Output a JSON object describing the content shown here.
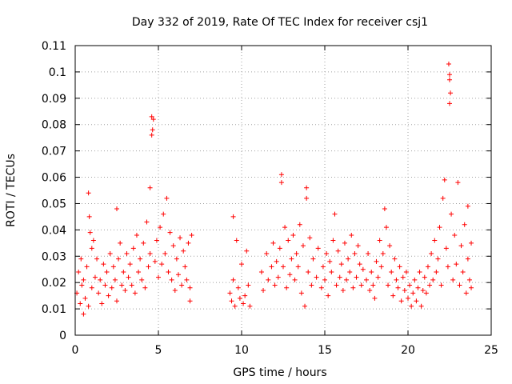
{
  "chart_data": {
    "type": "scatter",
    "title": "Day 332 of 2019, Rate Of TEC Index for receiver csj1",
    "xlabel": "GPS time / hours",
    "ylabel": "ROTI / TECUs",
    "xlim": [
      0,
      25
    ],
    "ylim": [
      0,
      0.11
    ],
    "x_ticks": [
      "0",
      "5",
      "10",
      "15",
      "20",
      "25"
    ],
    "y_ticks": [
      "0",
      "0.01",
      "0.02",
      "0.03",
      "0.04",
      "0.05",
      "0.06",
      "0.07",
      "0.08",
      "0.09",
      "0.1",
      "0.11"
    ],
    "grid": true,
    "marker": "+",
    "color": "#ff0000",
    "series": [
      {
        "points": [
          [
            0.1,
            0.016
          ],
          [
            0.2,
            0.024
          ],
          [
            0.3,
            0.012
          ],
          [
            0.35,
            0.029
          ],
          [
            0.4,
            0.019
          ],
          [
            0.5,
            0.008
          ],
          [
            0.5,
            0.021
          ],
          [
            0.6,
            0.014
          ],
          [
            0.7,
            0.026
          ],
          [
            0.8,
            0.011
          ],
          [
            0.8,
            0.054
          ],
          [
            0.85,
            0.045
          ],
          [
            0.9,
            0.039
          ],
          [
            1.0,
            0.033
          ],
          [
            1.0,
            0.018
          ],
          [
            1.1,
            0.036
          ],
          [
            1.2,
            0.022
          ],
          [
            1.3,
            0.029
          ],
          [
            1.4,
            0.016
          ],
          [
            1.5,
            0.021
          ],
          [
            1.6,
            0.012
          ],
          [
            1.7,
            0.027
          ],
          [
            1.8,
            0.019
          ],
          [
            1.9,
            0.024
          ],
          [
            2.0,
            0.015
          ],
          [
            2.1,
            0.031
          ],
          [
            2.2,
            0.018
          ],
          [
            2.3,
            0.026
          ],
          [
            2.4,
            0.021
          ],
          [
            2.5,
            0.048
          ],
          [
            2.5,
            0.013
          ],
          [
            2.6,
            0.029
          ],
          [
            2.7,
            0.035
          ],
          [
            2.8,
            0.019
          ],
          [
            2.9,
            0.024
          ],
          [
            3.0,
            0.017
          ],
          [
            3.1,
            0.031
          ],
          [
            3.2,
            0.022
          ],
          [
            3.3,
            0.027
          ],
          [
            3.4,
            0.019
          ],
          [
            3.5,
            0.033
          ],
          [
            3.6,
            0.016
          ],
          [
            3.7,
            0.038
          ],
          [
            3.8,
            0.024
          ],
          [
            3.9,
            0.029
          ],
          [
            4.0,
            0.021
          ],
          [
            4.1,
            0.035
          ],
          [
            4.2,
            0.018
          ],
          [
            4.3,
            0.043
          ],
          [
            4.4,
            0.026
          ],
          [
            4.5,
            0.056
          ],
          [
            4.5,
            0.031
          ],
          [
            4.6,
            0.076
          ],
          [
            4.6,
            0.083
          ],
          [
            4.65,
            0.078
          ],
          [
            4.7,
            0.082
          ],
          [
            4.8,
            0.028
          ],
          [
            4.9,
            0.036
          ],
          [
            5.0,
            0.022
          ],
          [
            5.1,
            0.041
          ],
          [
            5.2,
            0.027
          ],
          [
            5.3,
            0.046
          ],
          [
            5.4,
            0.031
          ],
          [
            5.5,
            0.052
          ],
          [
            5.6,
            0.024
          ],
          [
            5.7,
            0.039
          ],
          [
            5.8,
            0.021
          ],
          [
            5.9,
            0.034
          ],
          [
            6.0,
            0.017
          ],
          [
            6.1,
            0.029
          ],
          [
            6.2,
            0.023
          ],
          [
            6.3,
            0.037
          ],
          [
            6.4,
            0.019
          ],
          [
            6.5,
            0.032
          ],
          [
            6.6,
            0.026
          ],
          [
            6.7,
            0.021
          ],
          [
            6.8,
            0.035
          ],
          [
            6.9,
            0.018
          ],
          [
            7.0,
            0.038
          ],
          [
            6.9,
            0.013
          ],
          [
            9.3,
            0.016
          ],
          [
            9.4,
            0.013
          ],
          [
            9.5,
            0.045
          ],
          [
            9.5,
            0.021
          ],
          [
            9.6,
            0.011
          ],
          [
            9.7,
            0.036
          ],
          [
            9.8,
            0.018
          ],
          [
            9.9,
            0.014
          ],
          [
            10.0,
            0.027
          ],
          [
            10.1,
            0.012
          ],
          [
            10.2,
            0.015
          ],
          [
            10.3,
            0.032
          ],
          [
            10.4,
            0.019
          ],
          [
            10.5,
            0.011
          ],
          [
            11.2,
            0.024
          ],
          [
            11.3,
            0.017
          ],
          [
            11.5,
            0.031
          ],
          [
            11.6,
            0.021
          ],
          [
            11.8,
            0.026
          ],
          [
            11.9,
            0.035
          ],
          [
            12.0,
            0.019
          ],
          [
            12.1,
            0.028
          ],
          [
            12.2,
            0.022
          ],
          [
            12.3,
            0.033
          ],
          [
            12.4,
            0.061
          ],
          [
            12.4,
            0.058
          ],
          [
            12.5,
            0.026
          ],
          [
            12.6,
            0.041
          ],
          [
            12.7,
            0.018
          ],
          [
            12.8,
            0.036
          ],
          [
            12.9,
            0.023
          ],
          [
            13.0,
            0.029
          ],
          [
            13.1,
            0.038
          ],
          [
            13.2,
            0.021
          ],
          [
            13.3,
            0.031
          ],
          [
            13.4,
            0.026
          ],
          [
            13.5,
            0.042
          ],
          [
            13.6,
            0.016
          ],
          [
            13.7,
            0.034
          ],
          [
            13.8,
            0.011
          ],
          [
            13.9,
            0.056
          ],
          [
            13.9,
            0.052
          ],
          [
            14.0,
            0.024
          ],
          [
            14.1,
            0.037
          ],
          [
            14.2,
            0.019
          ],
          [
            14.3,
            0.029
          ],
          [
            14.5,
            0.022
          ],
          [
            14.6,
            0.033
          ],
          [
            14.8,
            0.018
          ],
          [
            14.9,
            0.026
          ],
          [
            15.0,
            0.021
          ],
          [
            15.1,
            0.031
          ],
          [
            15.2,
            0.015
          ],
          [
            15.3,
            0.028
          ],
          [
            15.4,
            0.024
          ],
          [
            15.5,
            0.036
          ],
          [
            15.6,
            0.046
          ],
          [
            15.7,
            0.019
          ],
          [
            15.8,
            0.032
          ],
          [
            15.9,
            0.022
          ],
          [
            16.0,
            0.027
          ],
          [
            16.1,
            0.017
          ],
          [
            16.2,
            0.035
          ],
          [
            16.3,
            0.021
          ],
          [
            16.4,
            0.029
          ],
          [
            16.5,
            0.024
          ],
          [
            16.6,
            0.038
          ],
          [
            16.7,
            0.018
          ],
          [
            16.8,
            0.031
          ],
          [
            16.9,
            0.022
          ],
          [
            17.0,
            0.034
          ],
          [
            17.1,
            0.027
          ],
          [
            17.2,
            0.019
          ],
          [
            17.3,
            0.025
          ],
          [
            17.5,
            0.021
          ],
          [
            17.6,
            0.031
          ],
          [
            17.7,
            0.017
          ],
          [
            17.8,
            0.024
          ],
          [
            17.9,
            0.019
          ],
          [
            18.0,
            0.014
          ],
          [
            18.1,
            0.028
          ],
          [
            18.2,
            0.022
          ],
          [
            18.3,
            0.036
          ],
          [
            18.4,
            0.026
          ],
          [
            18.5,
            0.031
          ],
          [
            18.6,
            0.048
          ],
          [
            18.7,
            0.041
          ],
          [
            18.8,
            0.019
          ],
          [
            18.9,
            0.034
          ],
          [
            19.0,
            0.024
          ],
          [
            19.1,
            0.015
          ],
          [
            19.2,
            0.029
          ],
          [
            19.3,
            0.021
          ],
          [
            19.4,
            0.018
          ],
          [
            19.5,
            0.026
          ],
          [
            19.6,
            0.013
          ],
          [
            19.7,
            0.022
          ],
          [
            19.8,
            0.017
          ],
          [
            19.9,
            0.024
          ],
          [
            20.0,
            0.014
          ],
          [
            20.1,
            0.019
          ],
          [
            20.2,
            0.011
          ],
          [
            20.3,
            0.016
          ],
          [
            20.4,
            0.021
          ],
          [
            20.5,
            0.013
          ],
          [
            20.6,
            0.018
          ],
          [
            20.7,
            0.024
          ],
          [
            20.8,
            0.011
          ],
          [
            20.9,
            0.017
          ],
          [
            21.0,
            0.022
          ],
          [
            21.1,
            0.016
          ],
          [
            21.2,
            0.026
          ],
          [
            21.3,
            0.019
          ],
          [
            21.4,
            0.031
          ],
          [
            21.5,
            0.021
          ],
          [
            21.6,
            0.036
          ],
          [
            21.7,
            0.024
          ],
          [
            21.8,
            0.029
          ],
          [
            21.9,
            0.041
          ],
          [
            22.0,
            0.019
          ],
          [
            22.1,
            0.052
          ],
          [
            22.2,
            0.059
          ],
          [
            22.3,
            0.033
          ],
          [
            22.4,
            0.026
          ],
          [
            22.45,
            0.103
          ],
          [
            22.5,
            0.099
          ],
          [
            22.5,
            0.097
          ],
          [
            22.55,
            0.092
          ],
          [
            22.5,
            0.088
          ],
          [
            22.6,
            0.046
          ],
          [
            22.7,
            0.021
          ],
          [
            22.8,
            0.038
          ],
          [
            22.9,
            0.027
          ],
          [
            23.0,
            0.058
          ],
          [
            23.1,
            0.019
          ],
          [
            23.2,
            0.034
          ],
          [
            23.3,
            0.024
          ],
          [
            23.4,
            0.042
          ],
          [
            23.5,
            0.016
          ],
          [
            23.6,
            0.049
          ],
          [
            23.6,
            0.029
          ],
          [
            23.7,
            0.021
          ],
          [
            23.8,
            0.035
          ],
          [
            23.8,
            0.018
          ]
        ]
      }
    ]
  }
}
